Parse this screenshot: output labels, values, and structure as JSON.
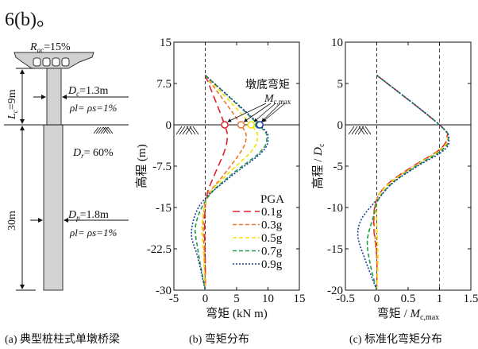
{
  "top_text": "6(b)。",
  "panel_a": {
    "caption": "(a) 典型桩柱式单墩桥梁",
    "deck_label": "R_ac=15%",
    "Rac_main": "R",
    "Rac_sub": "ac",
    "Rac_val": "=15%",
    "Lc_main": "L",
    "Lc_sub": "c",
    "Lc_val": "=9m",
    "Dc_main": "D",
    "Dc_sub": "c",
    "Dc_val": "=1.3m",
    "rho_c": "ρl= ρs=1%",
    "Dr_main": "D",
    "Dr_sub": "r",
    "Dr_val": "= 60%",
    "pile_len": "30m",
    "Dp_main": "D",
    "Dp_sub": "p",
    "Dp_val": "=1.8m",
    "rho_p": "ρl= ρs=1%"
  },
  "chart_data": [
    {
      "type": "line",
      "caption": "(b) 弯矩分布",
      "xlabel": "弯矩 (kN m)",
      "ylabel": "高程 (m)",
      "xlim": [
        -5,
        15
      ],
      "ylim": [
        -30,
        15
      ],
      "xticks": [
        -5,
        0,
        5,
        10,
        15
      ],
      "yticks": [
        15,
        7.5,
        0,
        -7.5,
        -15,
        -22.5,
        -30
      ],
      "ytick_labels": [
        "15",
        "7.5",
        "0",
        "-7.5",
        "-15",
        "-22.5",
        "-30"
      ],
      "legend_title": "PGA",
      "legend_position": "lower-right",
      "annotation": "墩底弯矩",
      "annotation_sym": "M",
      "annotation_sub": "c,max",
      "series": [
        {
          "name": "0.1g",
          "color": "#e0202a",
          "dash": "long",
          "points": [
            [
              0,
              9
            ],
            [
              3.1,
              0
            ],
            [
              3.5,
              -2.5
            ],
            [
              3.0,
              -5
            ],
            [
              1.5,
              -9
            ],
            [
              0.2,
              -13
            ],
            [
              -0.1,
              -18
            ],
            [
              0,
              -25
            ],
            [
              0,
              -30
            ]
          ],
          "mc_max": 3.1
        },
        {
          "name": "0.3g",
          "color": "#e87830",
          "dash": "medium",
          "points": [
            [
              0,
              9
            ],
            [
              5.7,
              0
            ],
            [
              6.5,
              -2.5
            ],
            [
              5.6,
              -5
            ],
            [
              3,
              -9
            ],
            [
              0.3,
              -13
            ],
            [
              -0.3,
              -17
            ],
            [
              -0.2,
              -22
            ],
            [
              0,
              -30
            ]
          ],
          "mc_max": 5.7
        },
        {
          "name": "0.5g",
          "color": "#f5e000",
          "dash": "medium",
          "points": [
            [
              0,
              9
            ],
            [
              7.3,
              0
            ],
            [
              8.3,
              -2.5
            ],
            [
              7.2,
              -5
            ],
            [
              3.5,
              -9
            ],
            [
              0.4,
              -13
            ],
            [
              -0.5,
              -18
            ],
            [
              -0.3,
              -23
            ],
            [
              0,
              -30
            ]
          ],
          "mc_max": 7.3
        },
        {
          "name": "0.7g",
          "color": "#1f9a50",
          "dash": "medium",
          "points": [
            [
              0,
              9
            ],
            [
              8.5,
              0
            ],
            [
              9.8,
              -2.5
            ],
            [
              8.7,
              -5
            ],
            [
              4.2,
              -9
            ],
            [
              0.5,
              -13
            ],
            [
              -1.5,
              -18
            ],
            [
              -1.2,
              -22.5
            ],
            [
              0,
              -30
            ]
          ],
          "mc_max": 8.5
        },
        {
          "name": "0.9g",
          "color": "#1d3f9a",
          "dash": "dot",
          "points": [
            [
              0,
              9
            ],
            [
              8.7,
              0
            ],
            [
              10,
              -2.5
            ],
            [
              9,
              -5
            ],
            [
              4.5,
              -9
            ],
            [
              0.3,
              -13
            ],
            [
              -1.5,
              -16
            ],
            [
              -2.2,
              -20
            ],
            [
              -1.2,
              -24
            ],
            [
              0,
              -30
            ]
          ],
          "mc_max": 8.7
        }
      ]
    },
    {
      "type": "line",
      "caption": "(c) 标准化弯矩分布",
      "xlabel": "弯矩 / ",
      "xlabel_sym": "M",
      "xlabel_sub": "c,max",
      "ylabel": "高程 / ",
      "ylabel_sym": "D",
      "ylabel_sub": "c",
      "xlim": [
        -0.5,
        1.5
      ],
      "ylim": [
        -20,
        10
      ],
      "xticks": [
        -0.5,
        0,
        0.5,
        1,
        1.5
      ],
      "xtick_labels": [
        "-0.5",
        "0",
        "0.5",
        "1",
        "1.5"
      ],
      "yticks": [
        10,
        5,
        0,
        -5,
        -10,
        -15,
        -20
      ],
      "series": [
        {
          "name": "0.1g",
          "color": "#e0202a",
          "dash": "long",
          "points": [
            [
              0,
              6
            ],
            [
              1,
              0
            ],
            [
              1.12,
              -1.5
            ],
            [
              1.0,
              -3
            ],
            [
              0.58,
              -5
            ],
            [
              0.2,
              -7
            ],
            [
              0,
              -9
            ],
            [
              -0.05,
              -12
            ],
            [
              0,
              -16
            ],
            [
              0,
              -20
            ]
          ]
        },
        {
          "name": "0.3g",
          "color": "#e87830",
          "dash": "medium",
          "points": [
            [
              0,
              6
            ],
            [
              1,
              0
            ],
            [
              1.13,
              -1.6
            ],
            [
              1.01,
              -3
            ],
            [
              0.6,
              -5
            ],
            [
              0.21,
              -7
            ],
            [
              0,
              -9
            ],
            [
              -0.04,
              -12
            ],
            [
              0,
              -16
            ],
            [
              0,
              -20
            ]
          ]
        },
        {
          "name": "0.5g",
          "color": "#f5e000",
          "dash": "medium",
          "points": [
            [
              0,
              6
            ],
            [
              1,
              0
            ],
            [
              1.13,
              -1.7
            ],
            [
              1.02,
              -3
            ],
            [
              0.61,
              -5
            ],
            [
              0.22,
              -7
            ],
            [
              0.01,
              -9
            ],
            [
              0,
              -12
            ],
            [
              0.02,
              -16
            ],
            [
              0,
              -20
            ]
          ]
        },
        {
          "name": "0.7g",
          "color": "#1f9a50",
          "dash": "medium",
          "points": [
            [
              0,
              6
            ],
            [
              1,
              0
            ],
            [
              1.14,
              -1.8
            ],
            [
              1.03,
              -3.1
            ],
            [
              0.63,
              -5
            ],
            [
              0.25,
              -7
            ],
            [
              0.03,
              -9
            ],
            [
              -0.05,
              -11
            ],
            [
              -0.15,
              -14
            ],
            [
              -0.1,
              -17
            ],
            [
              0,
              -20
            ]
          ]
        },
        {
          "name": "0.9g",
          "color": "#1d3f9a",
          "dash": "dot",
          "points": [
            [
              0,
              6
            ],
            [
              1,
              0
            ],
            [
              1.15,
              -1.9
            ],
            [
              1.05,
              -3.2
            ],
            [
              0.65,
              -5
            ],
            [
              0.26,
              -7
            ],
            [
              0.02,
              -9
            ],
            [
              -0.05,
              -9.5
            ],
            [
              -0.25,
              -11.5
            ],
            [
              -0.3,
              -13.5
            ],
            [
              -0.2,
              -16
            ],
            [
              0,
              -20
            ]
          ]
        }
      ]
    }
  ]
}
